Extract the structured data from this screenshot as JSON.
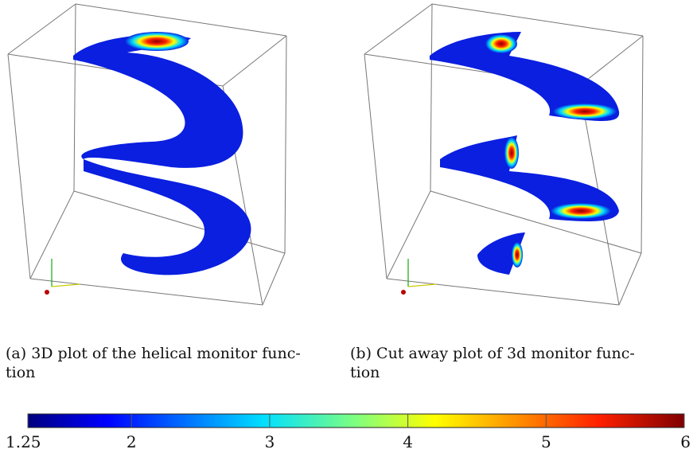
{
  "figures": [
    {
      "caption": [
        "(a) 3D plot of the helical monitor func-",
        "tion"
      ]
    },
    {
      "caption": [
        "(b) Cut away plot of 3d monitor func-",
        "tion"
      ]
    }
  ],
  "colorbar": {
    "lim": [
      1.25,
      6
    ],
    "ticks": [
      1.25,
      2,
      3,
      4,
      5,
      6
    ]
  }
}
